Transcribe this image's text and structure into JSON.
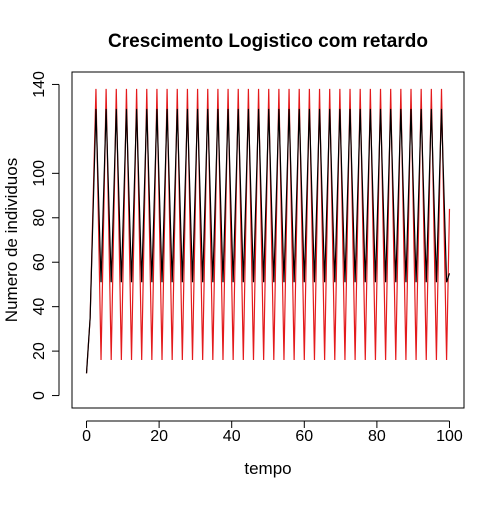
{
  "chart_data": {
    "type": "line",
    "title": "Crescimento Logistico com retardo",
    "x_label": "tempo",
    "y_label": "Numero de individuos",
    "x": [
      0,
      1,
      2.6,
      4,
      5.4,
      6.8,
      8.2,
      9.6,
      11,
      12.4,
      13.8,
      15.2,
      16.6,
      18,
      19.4,
      20.8,
      22.2,
      23.6,
      25,
      26.4,
      27.8,
      29.2,
      30.6,
      32,
      33.4,
      34.8,
      36.2,
      37.6,
      39,
      40.4,
      41.8,
      43.2,
      44.6,
      46,
      47.4,
      48.8,
      50.2,
      51.6,
      53,
      54.4,
      55.8,
      57.2,
      58.6,
      60,
      61.4,
      62.8,
      64.2,
      65.6,
      67,
      68.4,
      69.8,
      71.2,
      72.6,
      74,
      75.4,
      76.8,
      78.2,
      79.6,
      81,
      82.4,
      83.8,
      85.2,
      86.6,
      88,
      89.4,
      90.8,
      92.2,
      93.6,
      95,
      96.4,
      97.8,
      99.2,
      100
    ],
    "series": [
      {
        "color": "#e41a1c",
        "values": [
          10,
          35,
          138,
          16,
          138,
          16,
          138,
          16,
          138,
          16,
          138,
          16,
          138,
          16,
          138,
          16,
          138,
          16,
          138,
          16,
          138,
          16,
          138,
          16,
          138,
          16,
          138,
          16,
          138,
          16,
          138,
          16,
          138,
          16,
          138,
          16,
          138,
          16,
          138,
          16,
          138,
          16,
          138,
          16,
          138,
          16,
          138,
          16,
          138,
          16,
          138,
          16,
          138,
          16,
          138,
          16,
          138,
          16,
          138,
          16,
          138,
          16,
          138,
          16,
          138,
          16,
          138,
          16,
          138,
          16,
          138,
          16,
          84
        ]
      },
      {
        "color": "#000000",
        "values": [
          10,
          35,
          129,
          51,
          129,
          51,
          129,
          51,
          129,
          51,
          129,
          51,
          129,
          51,
          129,
          51,
          129,
          51,
          129,
          51,
          129,
          51,
          129,
          51,
          129,
          51,
          129,
          51,
          129,
          51,
          129,
          51,
          129,
          51,
          129,
          51,
          129,
          51,
          129,
          51,
          129,
          51,
          129,
          51,
          129,
          51,
          129,
          51,
          129,
          51,
          129,
          51,
          129,
          51,
          129,
          51,
          129,
          51,
          129,
          51,
          129,
          51,
          129,
          51,
          129,
          51,
          129,
          51,
          129,
          51,
          129,
          51,
          55
        ]
      }
    ],
    "xlim": [
      -4,
      104
    ],
    "ylim": [
      -5.6,
      145.6
    ],
    "xticks": [
      0,
      20,
      40,
      60,
      80,
      100
    ],
    "yticks": [
      0,
      20,
      40,
      60,
      80,
      100,
      140
    ]
  }
}
